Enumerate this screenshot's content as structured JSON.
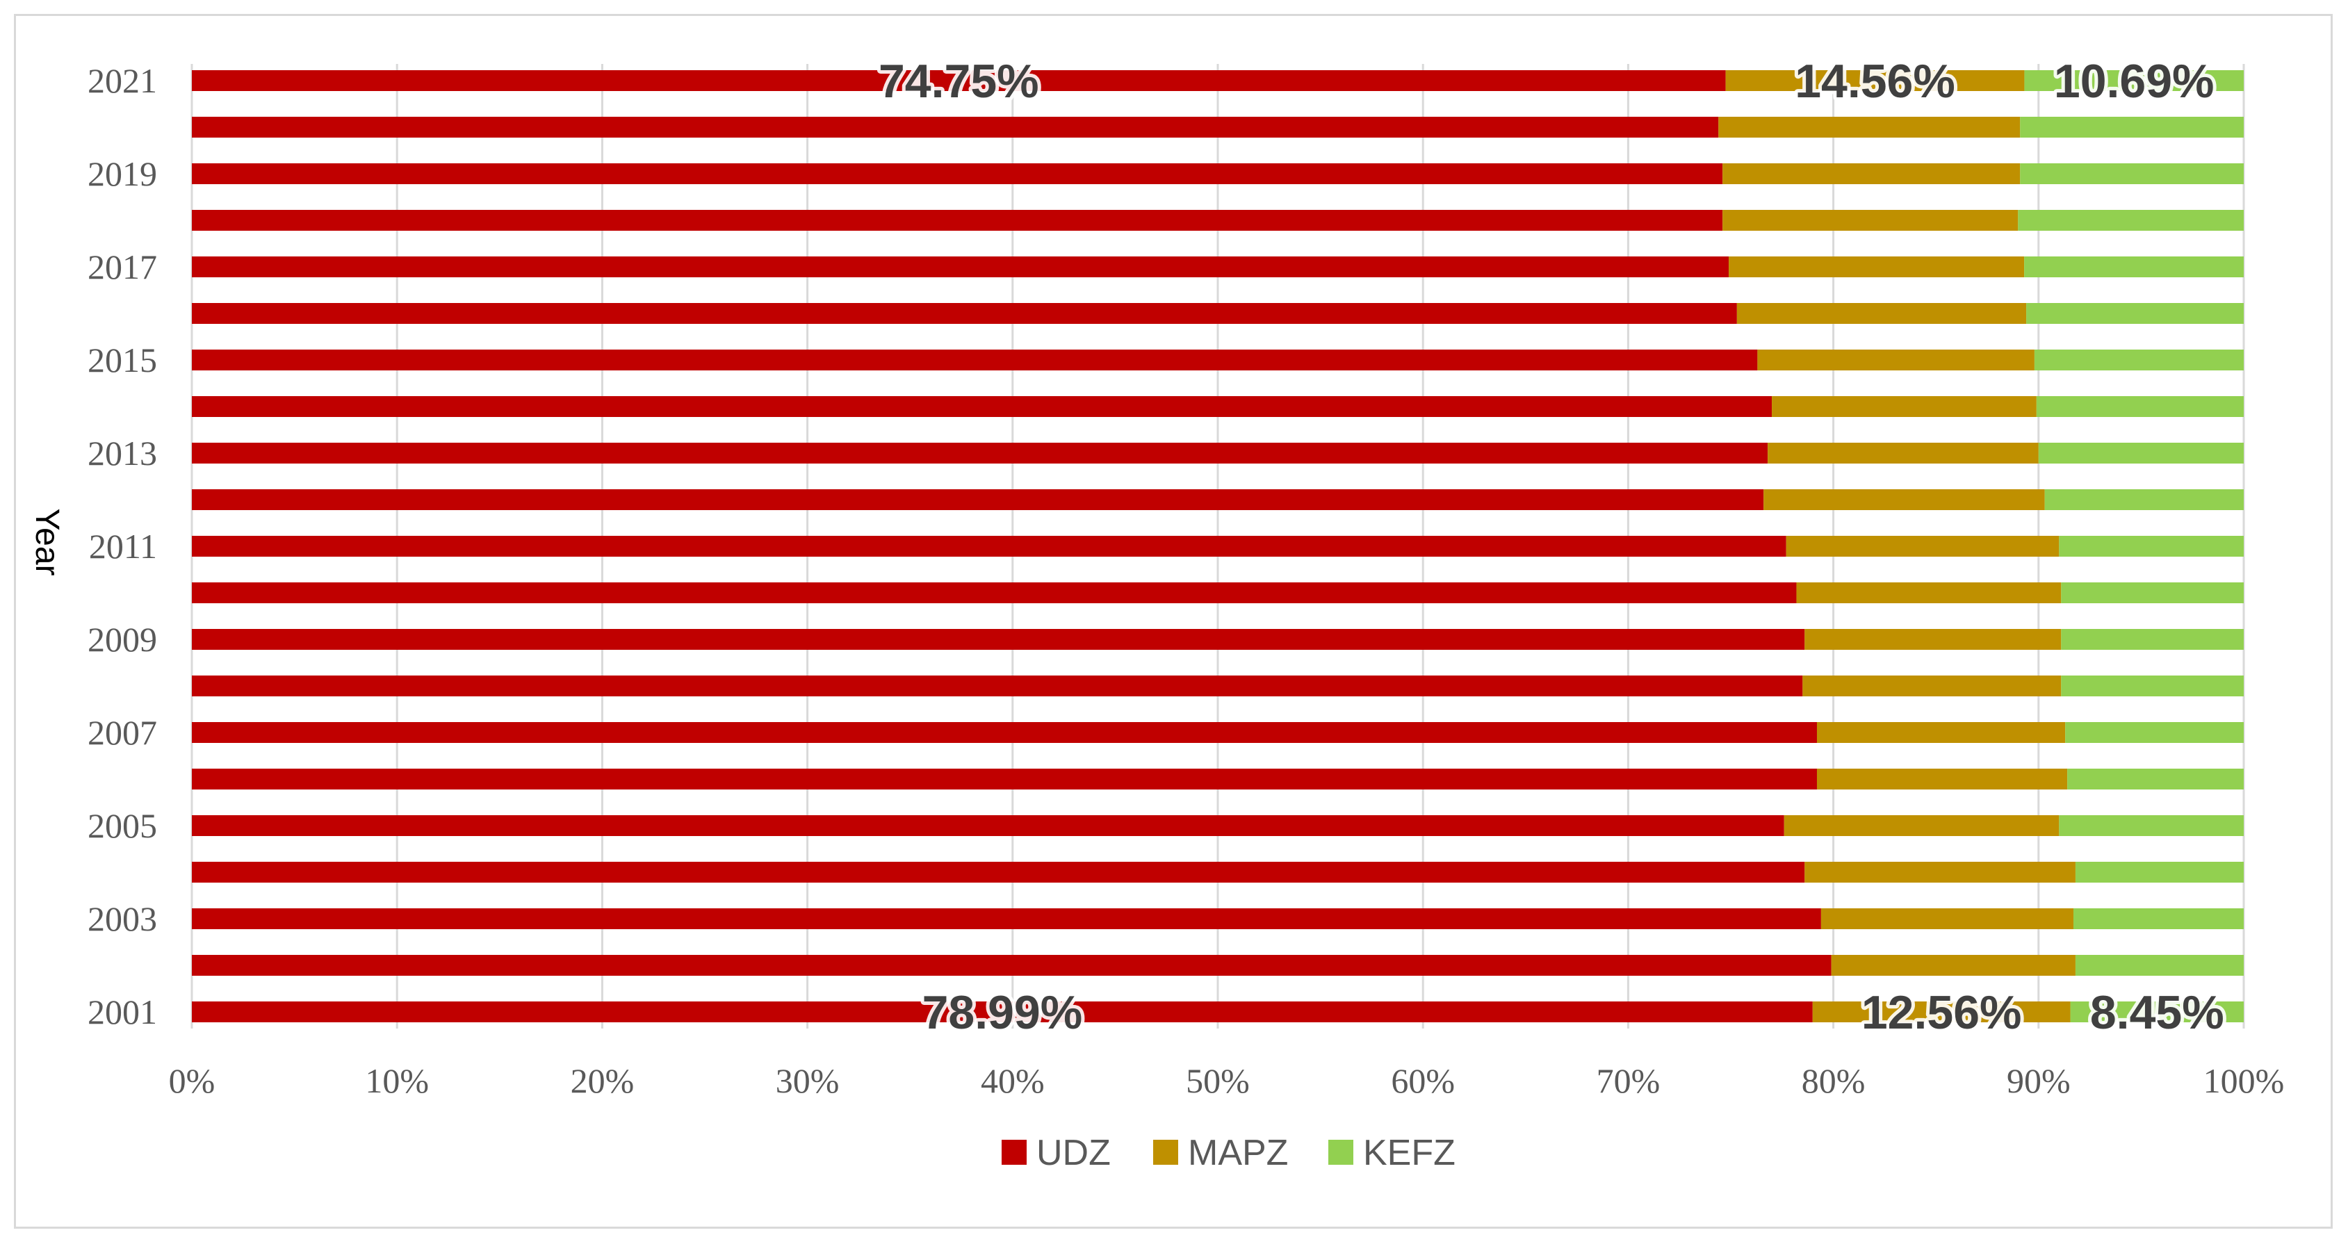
{
  "chart_data": {
    "type": "bar",
    "orientation": "horizontal",
    "stacked": "percent",
    "ylabel": "Year",
    "xlabel": "",
    "xlim": [
      0,
      100
    ],
    "x_ticks": [
      "0%",
      "10%",
      "20%",
      "30%",
      "40%",
      "50%",
      "60%",
      "70%",
      "80%",
      "90%",
      "100%"
    ],
    "categories": [
      "2001",
      "2002",
      "2003",
      "2004",
      "2005",
      "2006",
      "2007",
      "2008",
      "2009",
      "2010",
      "2011",
      "2012",
      "2013",
      "2014",
      "2015",
      "2016",
      "2017",
      "2018",
      "2019",
      "2020",
      "2021"
    ],
    "category_labels_shown": [
      "2001",
      "",
      "2003",
      "",
      "2005",
      "",
      "2007",
      "",
      "2009",
      "",
      "2011",
      "",
      "2013",
      "",
      "2015",
      "",
      "2017",
      "",
      "2019",
      "",
      "2021"
    ],
    "series": [
      {
        "name": "UDZ",
        "color": "#c00000",
        "values": [
          78.99,
          79.9,
          79.4,
          78.6,
          77.6,
          79.2,
          79.2,
          78.5,
          78.6,
          78.2,
          77.7,
          76.6,
          76.8,
          77.0,
          76.3,
          75.3,
          74.9,
          74.6,
          74.6,
          74.4,
          74.75
        ]
      },
      {
        "name": "MAPZ",
        "color": "#bf9000",
        "values": [
          12.56,
          11.9,
          12.3,
          13.2,
          13.4,
          12.2,
          12.1,
          12.6,
          12.5,
          12.9,
          13.3,
          13.7,
          13.2,
          12.9,
          13.5,
          14.1,
          14.4,
          14.4,
          14.5,
          14.7,
          14.56
        ]
      },
      {
        "name": "KEFZ",
        "color": "#92d050",
        "values": [
          8.45,
          8.2,
          8.3,
          8.2,
          9.0,
          8.6,
          8.7,
          8.9,
          8.9,
          8.9,
          9.0,
          9.7,
          10.0,
          10.1,
          10.2,
          10.6,
          10.7,
          11.0,
          10.9,
          10.9,
          10.69
        ]
      }
    ],
    "data_labels": [
      {
        "category": "2021",
        "texts": [
          "74.75%",
          "14.56%",
          "10.69%"
        ]
      },
      {
        "category": "2001",
        "texts": [
          "78.99%",
          "12.56%",
          "8.45%"
        ]
      }
    ],
    "grid": "vertical",
    "grid_color": "#d9d9d9",
    "legend": "bottom-center"
  }
}
